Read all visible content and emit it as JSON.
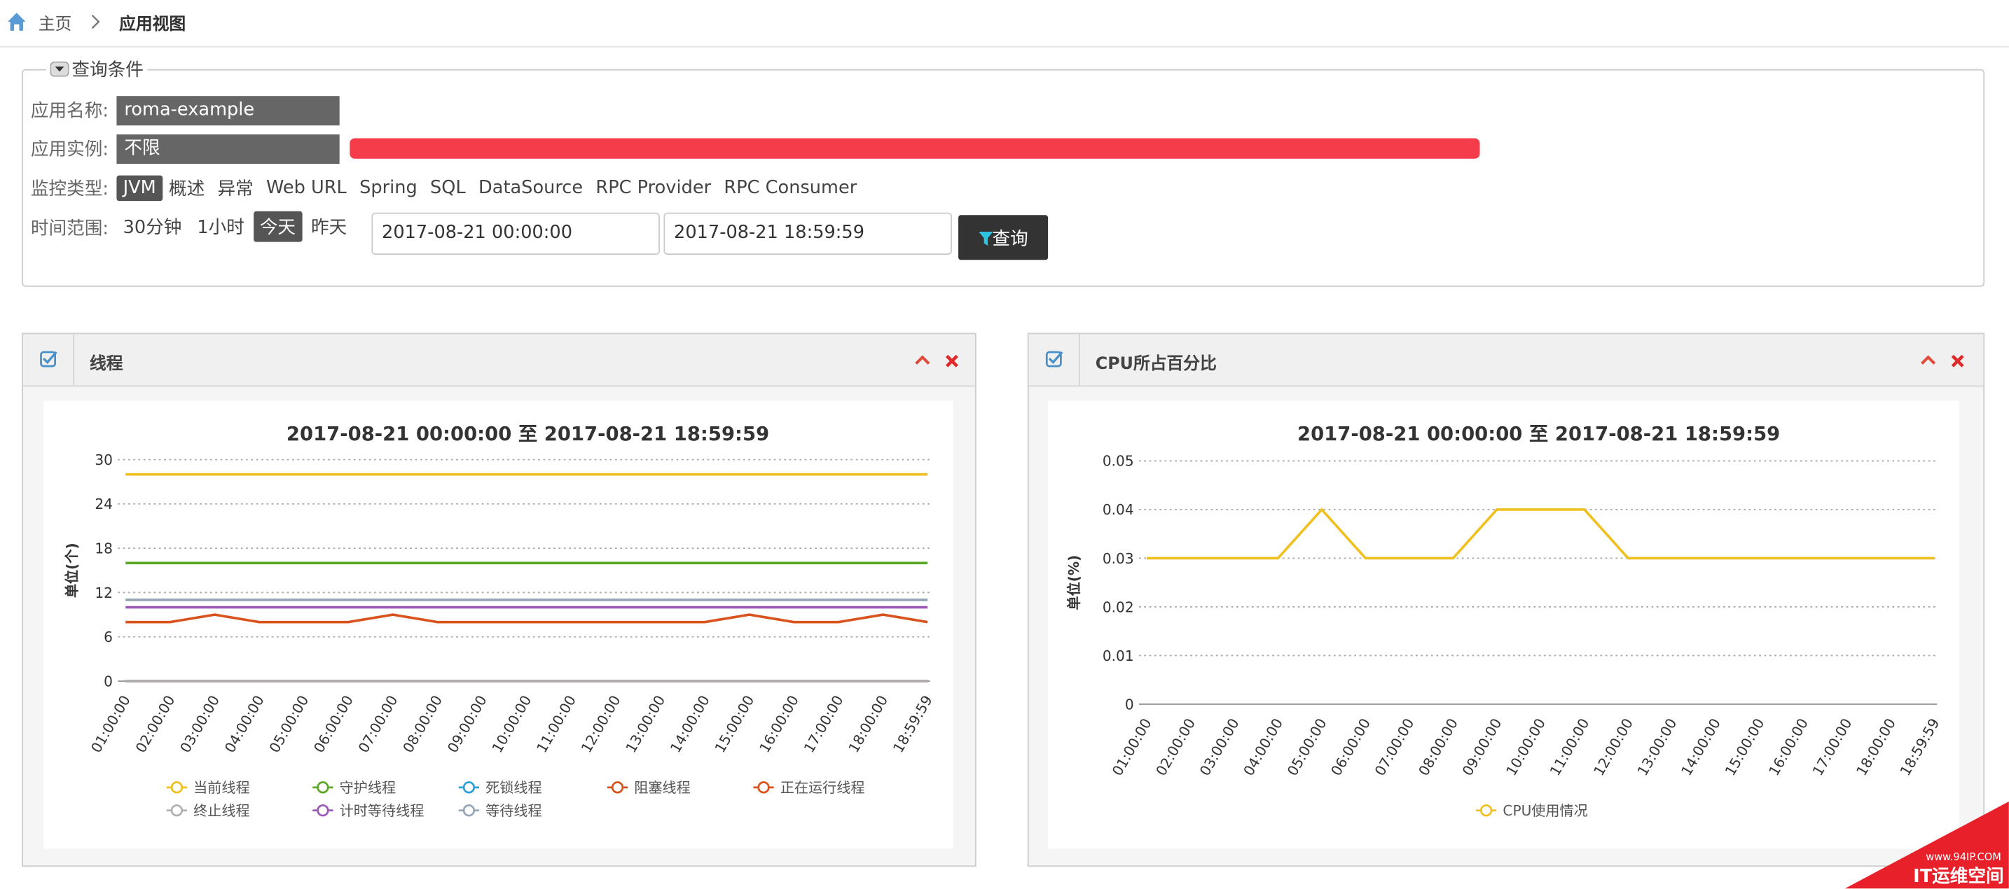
{
  "breadcrumb": [
    "主页",
    "应用视图"
  ],
  "query": {
    "title": "查询条件",
    "app_name": {
      "label": "应用名称:",
      "value": "roma-example"
    },
    "instance": {
      "label": "应用实例:",
      "value": "不限"
    },
    "monitor_type": {
      "label": "监控类型:",
      "options": [
        "JVM",
        "概述",
        "异常",
        "Web URL",
        "Spring",
        "SQL",
        "DataSource",
        "RPC Provider",
        "RPC Consumer"
      ],
      "active": 0
    },
    "time_range": {
      "label": "时间范围:",
      "options": [
        "30分钟",
        "1小时",
        "今天",
        "昨天"
      ],
      "active": 2,
      "start": "2017-08-21 00:00:00",
      "end": "2017-08-21 18:59:59",
      "button": "查询"
    }
  },
  "panels": [
    {
      "title": "线程"
    },
    {
      "title": "CPU所占百分比"
    }
  ],
  "watermark": {
    "url": "www.94IP.COM",
    "name": "IT运维空间"
  },
  "chart_data": [
    {
      "type": "line",
      "title": "2017-08-21 00:00:00 至 2017-08-21 18:59:59",
      "y_label": "单位(个)",
      "categories": [
        "01:00:00",
        "02:00:00",
        "03:00:00",
        "04:00:00",
        "05:00:00",
        "06:00:00",
        "07:00:00",
        "08:00:00",
        "09:00:00",
        "10:00:00",
        "11:00:00",
        "12:00:00",
        "13:00:00",
        "14:00:00",
        "15:00:00",
        "16:00:00",
        "17:00:00",
        "18:00:00",
        "18:59:59"
      ],
      "ylim": [
        0,
        30
      ],
      "yticks": [
        0,
        6,
        12,
        18,
        24,
        30
      ],
      "grid": true,
      "series": [
        {
          "name": "当前线程",
          "color": "#f0c020",
          "values": [
            28,
            28,
            28,
            28,
            28,
            28,
            28,
            28,
            28,
            28,
            28,
            28,
            28,
            28,
            28,
            28,
            28,
            28,
            28
          ]
        },
        {
          "name": "守护线程",
          "color": "#5aa826",
          "values": [
            16,
            16,
            16,
            16,
            16,
            16,
            16,
            16,
            16,
            16,
            16,
            16,
            16,
            16,
            16,
            16,
            16,
            16,
            16
          ]
        },
        {
          "name": "死锁线程",
          "color": "#2e9fd8",
          "values": [
            0,
            0,
            0,
            0,
            0,
            0,
            0,
            0,
            0,
            0,
            0,
            0,
            0,
            0,
            0,
            0,
            0,
            0,
            0
          ]
        },
        {
          "name": "阻塞线程",
          "color": "#d4541c",
          "values": [
            0,
            0,
            0,
            0,
            0,
            0,
            0,
            0,
            0,
            0,
            0,
            0,
            0,
            0,
            0,
            0,
            0,
            0,
            0
          ]
        },
        {
          "name": "正在运行线程",
          "color": "#d9531e",
          "values": [
            8,
            8,
            9,
            8,
            8,
            8,
            9,
            8,
            8,
            8,
            8,
            8,
            8,
            8,
            9,
            8,
            8,
            9,
            8
          ]
        },
        {
          "name": "终止线程",
          "color": "#b0b0b0",
          "values": [
            0,
            0,
            0,
            0,
            0,
            0,
            0,
            0,
            0,
            0,
            0,
            0,
            0,
            0,
            0,
            0,
            0,
            0,
            0
          ]
        },
        {
          "name": "计时等待线程",
          "color": "#9b59b6",
          "values": [
            10,
            10,
            10,
            10,
            10,
            10,
            10,
            10,
            10,
            10,
            10,
            10,
            10,
            10,
            10,
            10,
            10,
            10,
            10
          ]
        },
        {
          "name": "等待线程",
          "color": "#95a5b6",
          "values": [
            11,
            11,
            11,
            11,
            11,
            11,
            11,
            11,
            11,
            11,
            11,
            11,
            11,
            11,
            11,
            11,
            11,
            11,
            11
          ]
        }
      ]
    },
    {
      "type": "line",
      "title": "2017-08-21 00:00:00 至 2017-08-21 18:59:59",
      "y_label": "单位(%)",
      "categories": [
        "01:00:00",
        "02:00:00",
        "03:00:00",
        "04:00:00",
        "05:00:00",
        "06:00:00",
        "07:00:00",
        "08:00:00",
        "09:00:00",
        "10:00:00",
        "11:00:00",
        "12:00:00",
        "13:00:00",
        "14:00:00",
        "15:00:00",
        "16:00:00",
        "17:00:00",
        "18:00:00",
        "18:59:59"
      ],
      "ylim": [
        0,
        0.05
      ],
      "yticks": [
        0,
        0.01,
        0.02,
        0.03,
        0.04,
        0.05
      ],
      "grid": true,
      "series": [
        {
          "name": "CPU使用情况",
          "color": "#f0c020",
          "values": [
            0.03,
            0.03,
            0.03,
            0.03,
            0.04,
            0.03,
            0.03,
            0.03,
            0.04,
            0.04,
            0.04,
            0.03,
            0.03,
            0.03,
            0.03,
            0.03,
            0.03,
            0.03,
            0.03
          ]
        }
      ]
    }
  ]
}
